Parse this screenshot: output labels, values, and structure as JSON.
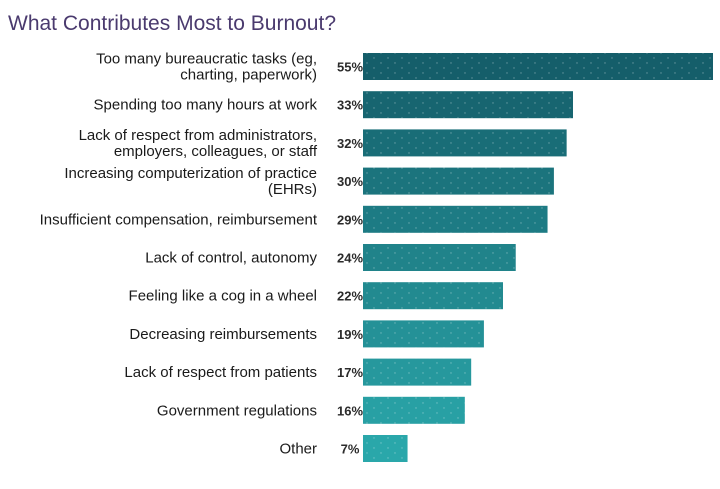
{
  "chart_data": {
    "type": "bar",
    "orientation": "horizontal",
    "title": "What Contributes Most to Burnout?",
    "xlabel": "",
    "ylabel": "",
    "xlim": [
      0,
      55
    ],
    "grid": false,
    "value_suffix": "%",
    "categories": [
      [
        "Too many bureaucratic tasks (eg,",
        "charting, paperwork)"
      ],
      [
        "Spending too many hours at work"
      ],
      [
        "Lack of respect from administrators,",
        "employers, colleagues, or staff"
      ],
      [
        "Increasing computerization of practice",
        "(EHRs)"
      ],
      [
        "Insufficient compensation, reimbursement"
      ],
      [
        "Lack of control, autonomy"
      ],
      [
        "Feeling like a cog in a wheel"
      ],
      [
        "Decreasing reimbursements"
      ],
      [
        "Lack of respect from patients"
      ],
      [
        "Government regulations"
      ],
      [
        "Other"
      ]
    ],
    "values": [
      55,
      33,
      32,
      30,
      29,
      24,
      22,
      19,
      17,
      16,
      7
    ],
    "colors": {
      "bar_top": "#155e6a",
      "bar_bottom": "#2aa7aa"
    }
  }
}
